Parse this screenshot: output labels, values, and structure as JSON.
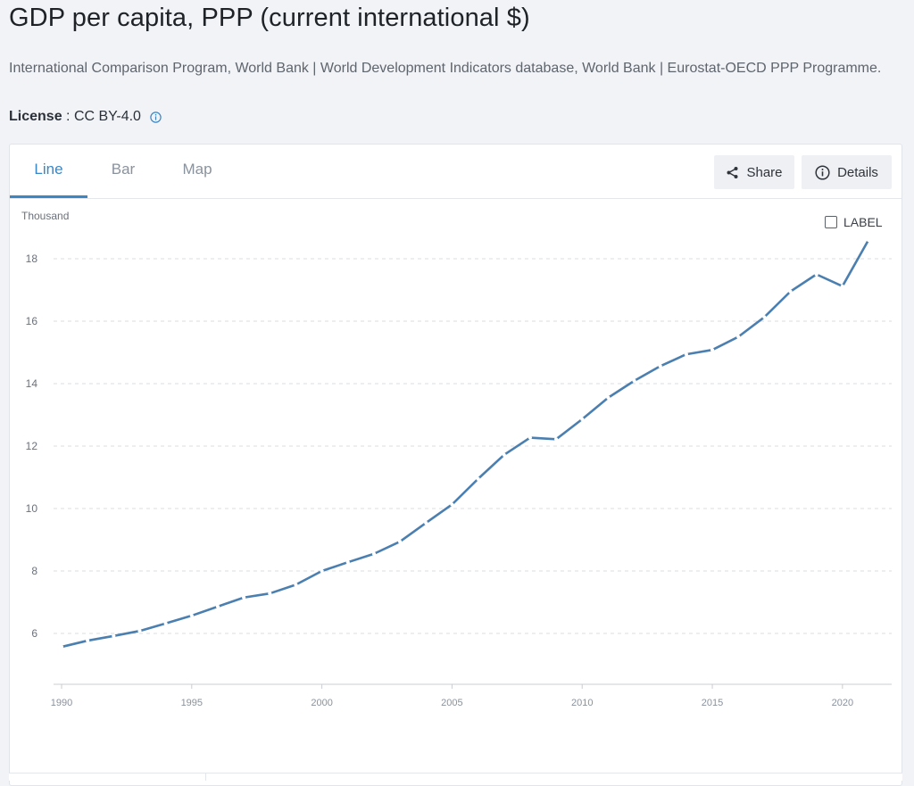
{
  "header": {
    "title": "GDP per capita, PPP (current international $)",
    "source": "International Comparison Program, World Bank | World Development Indicators database, World Bank | Eurostat-OECD PPP Programme.",
    "license_label": "License",
    "license_sep": " : ",
    "license_value": "CC BY-4.0",
    "info_icon": "info-icon"
  },
  "tabs": [
    {
      "label": "Line",
      "active": true
    },
    {
      "label": "Bar",
      "active": false
    },
    {
      "label": "Map",
      "active": false
    }
  ],
  "toolbar": {
    "share_label": "Share",
    "share_icon": "share-icon",
    "details_label": "Details",
    "details_icon": "info-circle-icon"
  },
  "label_toggle": {
    "label": "LABEL",
    "checked": false
  },
  "colors": {
    "accent": "#3b86c5",
    "line": "#4a7fb0",
    "grid": "#d9dce0",
    "axis_text": "#8a929c"
  },
  "chart_data": {
    "type": "line",
    "title": "",
    "xlabel": "",
    "ylabel": "Thousand",
    "x": [
      1990,
      1991,
      1992,
      1993,
      1994,
      1995,
      1996,
      1997,
      1998,
      1999,
      2000,
      2001,
      2002,
      2003,
      2004,
      2005,
      2006,
      2007,
      2008,
      2009,
      2010,
      2011,
      2012,
      2013,
      2014,
      2015,
      2016,
      2017,
      2018,
      2019,
      2020,
      2021
    ],
    "series": [
      {
        "name": "",
        "values": [
          5.57,
          5.77,
          5.92,
          6.08,
          6.32,
          6.57,
          6.86,
          7.15,
          7.28,
          7.56,
          8.0,
          8.28,
          8.55,
          8.94,
          9.54,
          10.13,
          10.95,
          11.72,
          12.27,
          12.22,
          12.86,
          13.55,
          14.09,
          14.56,
          14.94,
          15.08,
          15.5,
          16.13,
          16.95,
          17.5,
          17.12,
          18.6
        ]
      }
    ],
    "xlim": [
      1990,
      2021
    ],
    "ylim": [
      5.0,
      18.6
    ],
    "xticks": [
      1990,
      1995,
      2000,
      2005,
      2010,
      2015,
      2020
    ],
    "yticks": [
      6,
      8,
      10,
      12,
      14,
      16,
      18
    ],
    "grid": true,
    "grid_style": "dashed-horizontal",
    "legend": "none"
  }
}
